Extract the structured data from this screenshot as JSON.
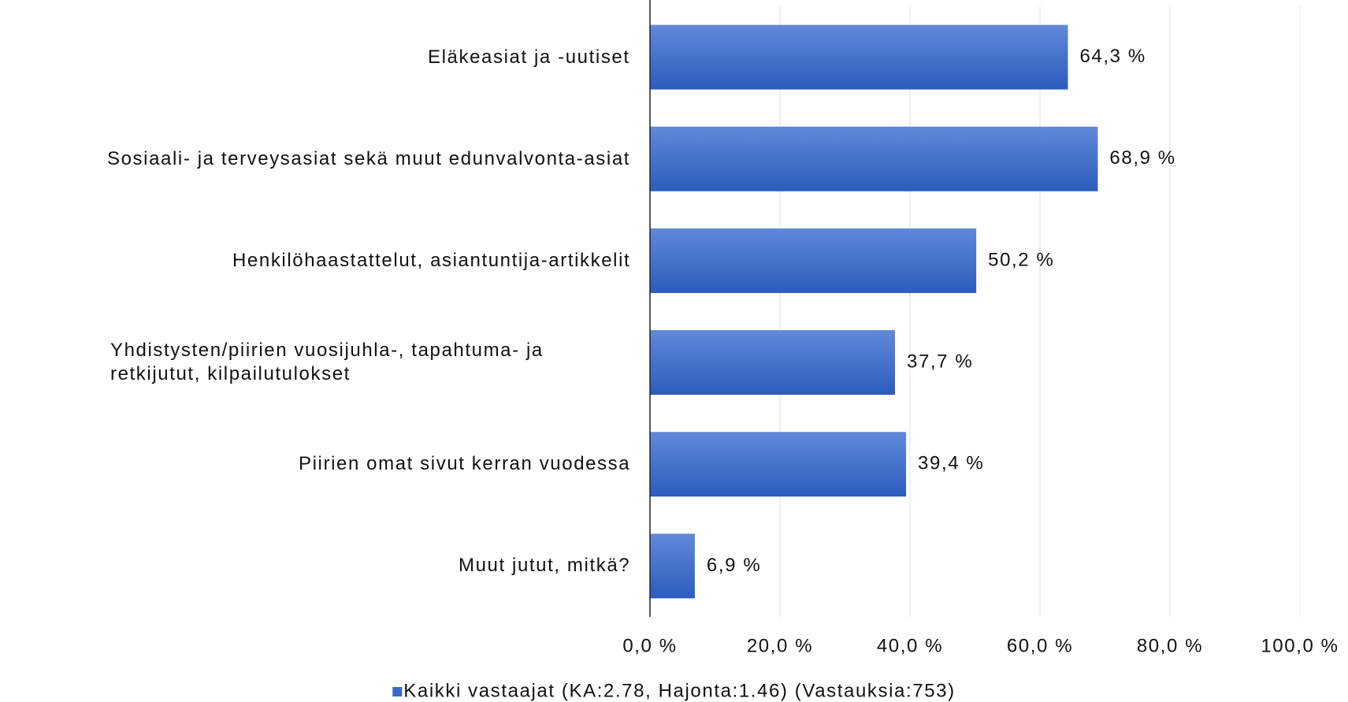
{
  "chart_data": {
    "type": "bar",
    "orientation": "horizontal",
    "categories": [
      "Eläkeasiat ja -uutiset",
      "Sosiaali- ja terveysasiat sekä muut edunvalvonta-asiat",
      "Henkilöhaastattelut, asiantuntija-artikkelit",
      "Yhdistysten/piirien vuosijuhla-, tapahtuma- ja retkijutut, kilpailutulokset",
      "Piirien omat sivut kerran vuodessa",
      "Muut jutut, mitkä?"
    ],
    "series": [
      {
        "name": "Kaikki vastaajat (KA:2.78, Hajonta:1.46) (Vastauksia:753)",
        "color": "#3a68c6",
        "values": [
          64.3,
          68.9,
          50.2,
          37.7,
          39.4,
          6.9
        ],
        "value_labels": [
          "64,3 %",
          "68,9 %",
          "50,2 %",
          "37,7 %",
          "39,4 %",
          "6,9 %"
        ]
      }
    ],
    "xlim": [
      0,
      100
    ],
    "xticks": [
      {
        "value": 0,
        "label": "0,0 %"
      },
      {
        "value": 20,
        "label": "20,0 %"
      },
      {
        "value": 40,
        "label": "40,0 %"
      },
      {
        "value": 60,
        "label": "60,0 %"
      },
      {
        "value": 80,
        "label": "80,0 %"
      },
      {
        "value": 100,
        "label": "100,0 %"
      }
    ],
    "grid": true,
    "legend": "bottom"
  }
}
